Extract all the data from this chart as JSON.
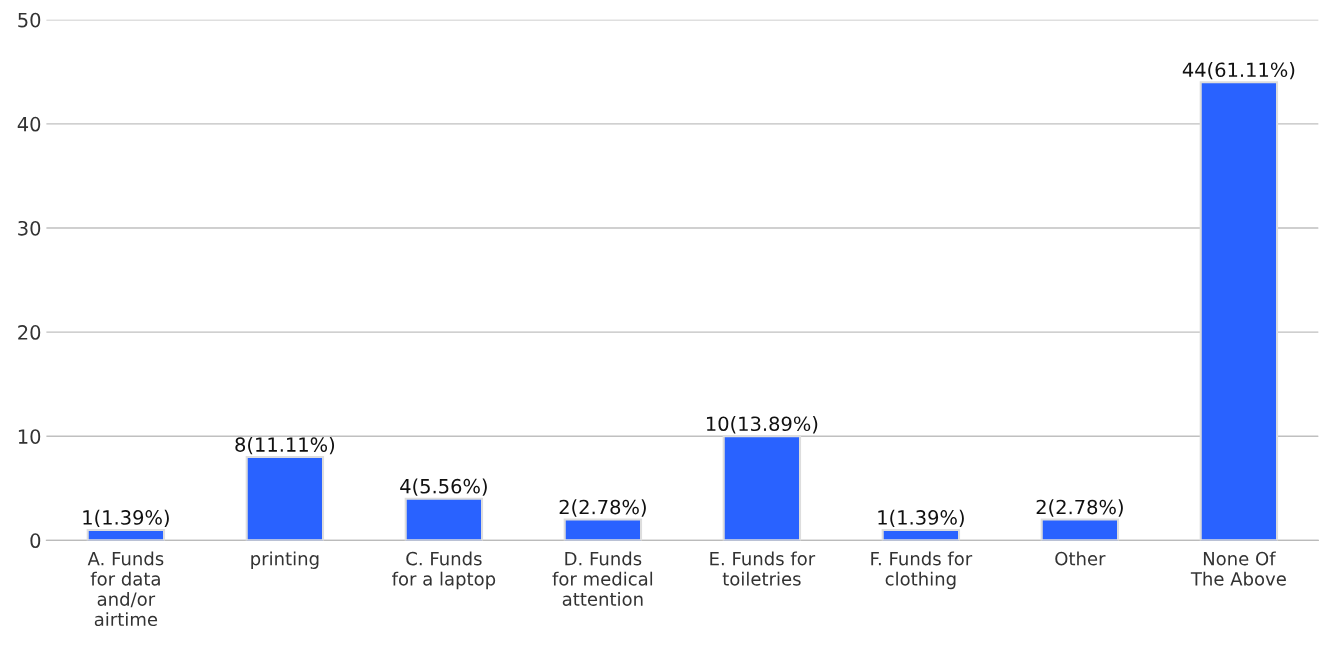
{
  "chart_data": {
    "type": "bar",
    "categories": [
      "A. Funds\nfor data\nand/or\nairtime",
      "printing",
      "C. Funds\nfor a laptop",
      "D. Funds\nfor medical\nattention",
      "E. Funds for\ntoiletries",
      "F. Funds for\nclothing",
      "Other",
      "None Of\nThe Above"
    ],
    "values": [
      1,
      8,
      4,
      2,
      10,
      1,
      2,
      44
    ],
    "value_labels": [
      "1(1.39%)",
      "8(11.11%)",
      "4(5.56%)",
      "2(2.78%)",
      "10(13.89%)",
      "1(1.39%)",
      "2(2.78%)",
      "44(61.11%)"
    ],
    "color": "#2962ff",
    "ylim": [
      0,
      50
    ],
    "yticks": [
      0,
      10,
      20,
      30,
      40,
      50
    ],
    "grid": "y"
  }
}
